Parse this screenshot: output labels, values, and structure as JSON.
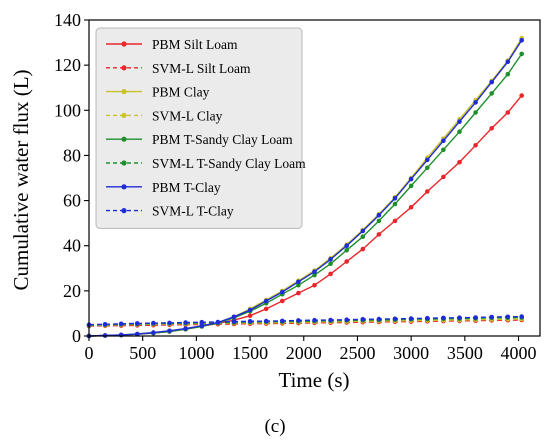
{
  "figure_caption": "(c)",
  "chart_data": {
    "type": "line",
    "xlabel": "Time (s)",
    "ylabel": "Cumulative water flux (L)",
    "xlim": [
      0,
      4200
    ],
    "ylim": [
      0,
      140
    ],
    "xticks": [
      0,
      500,
      1000,
      1500,
      2000,
      2500,
      3000,
      3500,
      4000
    ],
    "yticks": [
      0,
      20,
      40,
      60,
      80,
      100,
      120,
      140
    ],
    "legend_position": "top-left",
    "grid": false,
    "x": [
      0,
      150,
      300,
      450,
      600,
      750,
      900,
      1050,
      1200,
      1350,
      1500,
      1650,
      1800,
      1950,
      2100,
      2250,
      2400,
      2550,
      2700,
      2850,
      3000,
      3150,
      3300,
      3450,
      3600,
      3750,
      3900,
      4030
    ],
    "series": [
      {
        "name": "PBM Silt Loam",
        "color": "#e8262b",
        "dash": false,
        "values": [
          0,
          0.2,
          0.4,
          0.8,
          1.3,
          2.0,
          3.0,
          4.3,
          5.6,
          7.0,
          9.0,
          12.0,
          15.5,
          19.0,
          22.5,
          27.5,
          33.0,
          38.5,
          45.0,
          51.0,
          57.0,
          64.0,
          70.5,
          77.0,
          84.5,
          92.0,
          99.0,
          106.5
        ]
      },
      {
        "name": "SVM-L Silt Loam",
        "color": "#e8262b",
        "dash": true,
        "values": [
          4.4,
          4.5,
          4.6,
          4.7,
          4.8,
          4.9,
          5.0,
          5.1,
          5.2,
          5.3,
          5.4,
          5.5,
          5.6,
          5.7,
          5.8,
          5.9,
          6.0,
          6.1,
          6.2,
          6.3,
          6.4,
          6.5,
          6.6,
          6.7,
          6.8,
          6.9,
          7.0,
          7.1
        ]
      },
      {
        "name": "PBM Clay",
        "color": "#c9c22a",
        "dash": false,
        "values": [
          0,
          0.2,
          0.5,
          0.9,
          1.5,
          2.3,
          3.3,
          4.5,
          6.0,
          8.5,
          12.0,
          16.0,
          20.0,
          24.5,
          29.0,
          34.5,
          40.5,
          47.0,
          54.0,
          61.5,
          70.0,
          79.0,
          87.5,
          96.0,
          104.5,
          113.0,
          122.0,
          132.0
        ]
      },
      {
        "name": "SVM-L Clay",
        "color": "#c9c22a",
        "dash": true,
        "values": [
          4.6,
          4.8,
          5.0,
          5.1,
          5.2,
          5.3,
          5.4,
          5.5,
          5.6,
          5.7,
          5.8,
          5.9,
          6.0,
          6.1,
          6.2,
          6.3,
          6.4,
          6.5,
          6.6,
          6.7,
          6.8,
          6.9,
          7.0,
          7.1,
          7.2,
          7.3,
          7.4,
          7.5
        ]
      },
      {
        "name": "PBM T-Sandy Clay Loam",
        "color": "#1f8f2e",
        "dash": false,
        "values": [
          0,
          0.2,
          0.4,
          0.8,
          1.3,
          2.0,
          3.0,
          4.2,
          5.8,
          8.0,
          11.0,
          14.5,
          18.5,
          22.5,
          27.0,
          32.0,
          38.0,
          44.0,
          51.0,
          58.5,
          66.5,
          74.5,
          82.5,
          90.5,
          99.0,
          107.5,
          116.0,
          125.0
        ]
      },
      {
        "name": "SVM-L T-Sandy Clay Loam",
        "color": "#1f8f2e",
        "dash": true,
        "values": [
          4.8,
          5.0,
          5.2,
          5.3,
          5.5,
          5.6,
          5.7,
          5.8,
          5.9,
          6.0,
          6.2,
          6.3,
          6.4,
          6.5,
          6.6,
          6.8,
          6.9,
          7.0,
          7.1,
          7.2,
          7.4,
          7.5,
          7.6,
          7.7,
          7.8,
          8.0,
          8.1,
          8.2
        ]
      },
      {
        "name": "PBM T-Clay",
        "color": "#1f2bd6",
        "dash": false,
        "values": [
          0,
          0.2,
          0.5,
          0.9,
          1.5,
          2.3,
          3.3,
          4.5,
          6.0,
          8.5,
          11.5,
          15.5,
          19.5,
          24.0,
          28.5,
          34.0,
          40.0,
          46.5,
          53.5,
          61.0,
          69.5,
          78.0,
          86.5,
          95.0,
          103.5,
          112.5,
          121.5,
          131.0
        ]
      },
      {
        "name": "SVM-L T-Clay",
        "color": "#1f2bd6",
        "dash": true,
        "values": [
          5.0,
          5.2,
          5.4,
          5.6,
          5.7,
          5.8,
          6.0,
          6.1,
          6.2,
          6.4,
          6.5,
          6.6,
          6.7,
          6.9,
          7.0,
          7.1,
          7.2,
          7.4,
          7.5,
          7.6,
          7.7,
          7.9,
          8.0,
          8.1,
          8.2,
          8.4,
          8.5,
          8.6
        ]
      }
    ]
  }
}
